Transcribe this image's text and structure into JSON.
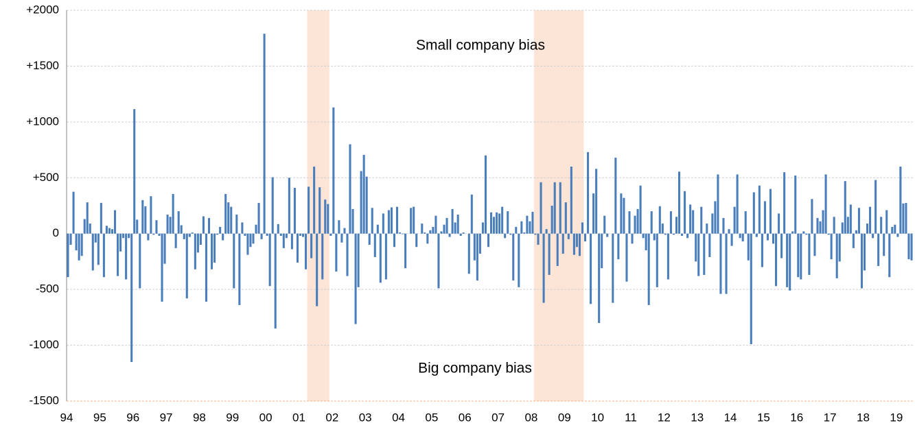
{
  "chart_data": {
    "type": "bar",
    "annotations": [
      "Small company bias",
      "Big company bias"
    ],
    "categories": [
      "94",
      null,
      null,
      null,
      null,
      null,
      null,
      null,
      null,
      null,
      null,
      null,
      "95",
      null,
      null,
      null,
      null,
      null,
      null,
      null,
      null,
      null,
      null,
      null,
      "96",
      null,
      null,
      null,
      null,
      null,
      null,
      null,
      null,
      null,
      null,
      null,
      "97",
      null,
      null,
      null,
      null,
      null,
      null,
      null,
      null,
      null,
      null,
      null,
      "98",
      null,
      null,
      null,
      null,
      null,
      null,
      null,
      null,
      null,
      null,
      null,
      "99",
      null,
      null,
      null,
      null,
      null,
      null,
      null,
      null,
      null,
      null,
      null,
      "00",
      null,
      null,
      null,
      null,
      null,
      null,
      null,
      null,
      null,
      null,
      null,
      "01",
      null,
      null,
      null,
      null,
      null,
      null,
      null,
      null,
      null,
      null,
      null,
      "02",
      null,
      null,
      null,
      null,
      null,
      null,
      null,
      null,
      null,
      null,
      null,
      "03",
      null,
      null,
      null,
      null,
      null,
      null,
      null,
      null,
      null,
      null,
      null,
      "04",
      null,
      null,
      null,
      null,
      null,
      null,
      null,
      null,
      null,
      null,
      null,
      "05",
      null,
      null,
      null,
      null,
      null,
      null,
      null,
      null,
      null,
      null,
      null,
      "06",
      null,
      null,
      null,
      null,
      null,
      null,
      null,
      null,
      null,
      null,
      null,
      "07",
      null,
      null,
      null,
      null,
      null,
      null,
      null,
      null,
      null,
      null,
      null,
      "08",
      null,
      null,
      null,
      null,
      null,
      null,
      null,
      null,
      null,
      null,
      null,
      "09",
      null,
      null,
      null,
      null,
      null,
      null,
      null,
      null,
      null,
      null,
      null,
      "10",
      null,
      null,
      null,
      null,
      null,
      null,
      null,
      null,
      null,
      null,
      null,
      "11",
      null,
      null,
      null,
      null,
      null,
      null,
      null,
      null,
      null,
      null,
      null,
      "12",
      null,
      null,
      null,
      null,
      null,
      null,
      null,
      null,
      null,
      null,
      null,
      "13",
      null,
      null,
      null,
      null,
      null,
      null,
      null,
      null,
      null,
      null,
      null,
      "14",
      null,
      null,
      null,
      null,
      null,
      null,
      null,
      null,
      null,
      null,
      null,
      "15",
      null,
      null,
      null,
      null,
      null,
      null,
      null,
      null,
      null,
      null,
      null,
      "16",
      null,
      null,
      null,
      null,
      null,
      null,
      null,
      null,
      null,
      null,
      null,
      "17",
      null,
      null,
      null,
      null,
      null,
      null,
      null,
      null,
      null,
      null,
      null,
      "18",
      null,
      null,
      null,
      null,
      null,
      null,
      null,
      null,
      null,
      null,
      null,
      "19",
      null,
      null,
      null,
      null,
      null
    ],
    "values": [
      -390,
      -100,
      375,
      -150,
      -240,
      -200,
      130,
      280,
      90,
      -330,
      -80,
      -280,
      275,
      -390,
      70,
      50,
      40,
      210,
      -380,
      -160,
      -40,
      -410,
      -40,
      -1150,
      1115,
      125,
      -490,
      300,
      245,
      -60,
      335,
      -10,
      120,
      -20,
      -610,
      -270,
      170,
      150,
      355,
      -130,
      200,
      75,
      -50,
      -580,
      -30,
      10,
      -320,
      -170,
      -100,
      155,
      -610,
      140,
      -320,
      -260,
      -10,
      60,
      -60,
      355,
      280,
      240,
      -490,
      170,
      -640,
      100,
      -20,
      -190,
      -120,
      -90,
      80,
      275,
      -50,
      1790,
      -20,
      -470,
      505,
      -850,
      85,
      -20,
      -130,
      -40,
      500,
      -140,
      410,
      -260,
      -20,
      -30,
      -320,
      420,
      -220,
      600,
      -650,
      415,
      -410,
      305,
      265,
      -20,
      1130,
      -340,
      120,
      -80,
      50,
      -380,
      800,
      220,
      -810,
      -480,
      560,
      705,
      510,
      -100,
      230,
      -210,
      80,
      -440,
      180,
      -410,
      210,
      235,
      -120,
      240,
      10,
      -5,
      -310,
      0,
      230,
      240,
      -120,
      0,
      90,
      10,
      -90,
      30,
      60,
      160,
      -490,
      20,
      80,
      140,
      -30,
      220,
      100,
      170,
      -20,
      10,
      0,
      -360,
      350,
      -240,
      -420,
      -180,
      100,
      700,
      -120,
      190,
      150,
      190,
      180,
      240,
      -40,
      200,
      -10,
      -420,
      60,
      -480,
      110,
      10,
      160,
      110,
      195,
      -10,
      -100,
      460,
      -620,
      40,
      -370,
      250,
      460,
      -290,
      460,
      -180,
      280,
      -50,
      600,
      -190,
      -120,
      -200,
      100,
      -70,
      730,
      -630,
      360,
      580,
      -800,
      -310,
      160,
      -30,
      0,
      -620,
      680,
      -230,
      360,
      320,
      -430,
      200,
      -90,
      160,
      220,
      430,
      -40,
      -150,
      -640,
      200,
      -60,
      -480,
      245,
      90,
      -10,
      -410,
      200,
      -10,
      150,
      555,
      -20,
      380,
      -40,
      260,
      210,
      -250,
      -380,
      240,
      -370,
      90,
      -210,
      180,
      290,
      530,
      -540,
      140,
      -540,
      40,
      -110,
      240,
      530,
      -40,
      -70,
      200,
      -240,
      -990,
      370,
      -30,
      430,
      -300,
      290,
      -60,
      400,
      -90,
      -470,
      180,
      -220,
      550,
      -480,
      -510,
      20,
      520,
      -390,
      -410,
      20,
      -10,
      -370,
      310,
      -200,
      140,
      110,
      210,
      530,
      -10,
      -230,
      150,
      -400,
      -250,
      100,
      470,
      150,
      260,
      -130,
      30,
      230,
      -490,
      -330,
      90,
      240,
      -40,
      480,
      -290,
      150,
      -200,
      210,
      -390,
      60,
      80,
      -30,
      600,
      270,
      275,
      -230,
      -240
    ],
    "color": "#4a7ebb",
    "shaded_ranges": [
      [
        87,
        95
      ],
      [
        169,
        187
      ]
    ],
    "shade_color": "#fce4d6",
    "ylim": [
      -1500,
      2000
    ],
    "yticks": [
      -1500,
      -1000,
      -500,
      0,
      {
        "value": 500,
        "label": "+500"
      },
      {
        "value": 1000,
        "label": "+1000"
      },
      {
        "value": 1500,
        "label": "+1500"
      },
      {
        "value": 2000,
        "label": "+2000"
      }
    ],
    "grid": true
  }
}
